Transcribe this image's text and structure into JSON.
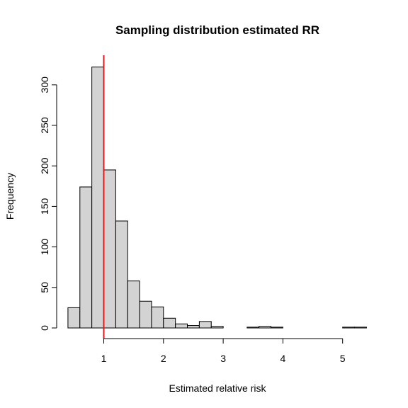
{
  "chart_data": {
    "type": "bar",
    "title": "Sampling distribution estimated RR",
    "xlabel": "Estimated  relative risk",
    "ylabel": "Frequency",
    "bin_width": 0.2,
    "bins": [
      {
        "x0": 0.4,
        "x1": 0.6,
        "count": 25
      },
      {
        "x0": 0.6,
        "x1": 0.8,
        "count": 174
      },
      {
        "x0": 0.8,
        "x1": 1.0,
        "count": 322
      },
      {
        "x0": 1.0,
        "x1": 1.2,
        "count": 195
      },
      {
        "x0": 1.2,
        "x1": 1.4,
        "count": 132
      },
      {
        "x0": 1.4,
        "x1": 1.6,
        "count": 58
      },
      {
        "x0": 1.6,
        "x1": 1.8,
        "count": 33
      },
      {
        "x0": 1.8,
        "x1": 2.0,
        "count": 26
      },
      {
        "x0": 2.0,
        "x1": 2.2,
        "count": 12
      },
      {
        "x0": 2.2,
        "x1": 2.4,
        "count": 5
      },
      {
        "x0": 2.4,
        "x1": 2.6,
        "count": 3
      },
      {
        "x0": 2.6,
        "x1": 2.8,
        "count": 8
      },
      {
        "x0": 2.8,
        "x1": 3.0,
        "count": 2
      },
      {
        "x0": 3.0,
        "x1": 3.2,
        "count": 0
      },
      {
        "x0": 3.2,
        "x1": 3.4,
        "count": 0
      },
      {
        "x0": 3.4,
        "x1": 3.6,
        "count": 1
      },
      {
        "x0": 3.6,
        "x1": 3.8,
        "count": 2
      },
      {
        "x0": 3.8,
        "x1": 4.0,
        "count": 1
      },
      {
        "x0": 4.0,
        "x1": 4.2,
        "count": 0
      },
      {
        "x0": 4.2,
        "x1": 4.4,
        "count": 0
      },
      {
        "x0": 4.4,
        "x1": 4.6,
        "count": 0
      },
      {
        "x0": 4.6,
        "x1": 4.8,
        "count": 0
      },
      {
        "x0": 4.8,
        "x1": 5.0,
        "count": 0
      },
      {
        "x0": 5.0,
        "x1": 5.2,
        "count": 1
      },
      {
        "x0": 5.2,
        "x1": 5.4,
        "count": 1
      }
    ],
    "bar_color": "#d3d3d3",
    "reference_line": {
      "x": 1,
      "color": "#e31a1c"
    },
    "xlim": [
      0.4,
      5.4
    ],
    "ylim": [
      0,
      335
    ],
    "x_ticks": [
      {
        "value": 1,
        "label": "1"
      },
      {
        "value": 2,
        "label": "2"
      },
      {
        "value": 3,
        "label": "3"
      },
      {
        "value": 4,
        "label": "4"
      },
      {
        "value": 5,
        "label": "5"
      }
    ],
    "y_ticks": [
      {
        "value": 0,
        "label": "0"
      },
      {
        "value": 50,
        "label": "50"
      },
      {
        "value": 100,
        "label": "100"
      },
      {
        "value": 150,
        "label": "150"
      },
      {
        "value": 200,
        "label": "200"
      },
      {
        "value": 250,
        "label": "250"
      },
      {
        "value": 300,
        "label": "300"
      }
    ],
    "grid": false,
    "legend": "none"
  }
}
